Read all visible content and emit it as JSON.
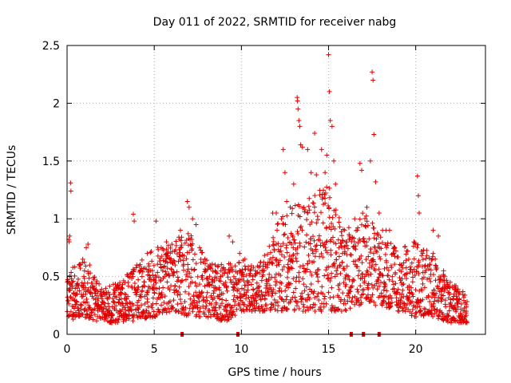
{
  "chart_data": {
    "type": "scatter",
    "title": "Day 011 of 2022, SRMTID for receiver nabg",
    "xlabel": "GPS time / hours",
    "ylabel": "SRMTID / TECUs",
    "xlim": [
      0,
      24
    ],
    "ylim": [
      0,
      2.5
    ],
    "xticks": [
      0,
      5,
      10,
      15,
      20
    ],
    "xtick_labels": [
      "0",
      "5",
      "10",
      "15",
      "20"
    ],
    "yticks": [
      0,
      0.5,
      1,
      1.5,
      2,
      2.5
    ],
    "ytick_labels": [
      "0",
      "0.5",
      "1",
      "1.5",
      "2",
      "2.5"
    ],
    "grid": true,
    "marker": "+",
    "series_color": "#e00000",
    "gap_markers_x": [
      6.6,
      9.8,
      16.3,
      17.0,
      17.9
    ],
    "series": [
      {
        "name": "SRMTID",
        "points": [
          [
            0.1,
            0.82
          ],
          [
            0.12,
            0.8
          ],
          [
            0.15,
            0.85
          ],
          [
            0.2,
            1.31
          ],
          [
            0.22,
            1.24
          ],
          [
            0.3,
            0.45
          ],
          [
            0.35,
            0.13
          ],
          [
            0.5,
            0.35
          ],
          [
            0.6,
            0.4
          ],
          [
            0.9,
            0.65
          ],
          [
            1.0,
            0.55
          ],
          [
            1.1,
            0.75
          ],
          [
            1.2,
            0.78
          ],
          [
            1.3,
            0.6
          ],
          [
            1.5,
            0.4
          ],
          [
            1.7,
            0.25
          ],
          [
            2.0,
            0.2
          ],
          [
            2.3,
            0.18
          ],
          [
            2.7,
            0.22
          ],
          [
            3.0,
            0.3
          ],
          [
            3.3,
            0.35
          ],
          [
            3.5,
            0.45
          ],
          [
            3.8,
            1.04
          ],
          [
            3.85,
            0.98
          ],
          [
            4.0,
            0.6
          ],
          [
            4.3,
            0.5
          ],
          [
            4.6,
            0.7
          ],
          [
            4.9,
            0.55
          ],
          [
            5.1,
            0.98
          ],
          [
            5.4,
            0.75
          ],
          [
            5.7,
            0.8
          ],
          [
            5.9,
            0.65
          ],
          [
            6.2,
            0.6
          ],
          [
            6.5,
            0.9
          ],
          [
            6.9,
            1.15
          ],
          [
            7.0,
            1.1
          ],
          [
            7.2,
            1.0
          ],
          [
            7.4,
            0.95
          ],
          [
            7.6,
            0.75
          ],
          [
            7.9,
            0.65
          ],
          [
            8.2,
            0.6
          ],
          [
            8.5,
            0.55
          ],
          [
            8.8,
            0.5
          ],
          [
            9.1,
            0.45
          ],
          [
            9.3,
            0.85
          ],
          [
            9.5,
            0.8
          ],
          [
            9.9,
            0.7
          ],
          [
            10.2,
            0.65
          ],
          [
            10.5,
            0.55
          ],
          [
            10.8,
            0.55
          ],
          [
            11.2,
            0.5
          ],
          [
            11.5,
            0.6
          ],
          [
            11.8,
            1.05
          ],
          [
            12.0,
            1.05
          ],
          [
            12.3,
            1.0
          ],
          [
            12.4,
            1.6
          ],
          [
            12.5,
            1.4
          ],
          [
            12.6,
            1.15
          ],
          [
            12.8,
            1.1
          ],
          [
            13.0,
            1.3
          ],
          [
            13.2,
            2.05
          ],
          [
            13.22,
            2.02
          ],
          [
            13.25,
            1.95
          ],
          [
            13.3,
            1.85
          ],
          [
            13.35,
            1.8
          ],
          [
            13.4,
            1.64
          ],
          [
            13.5,
            1.62
          ],
          [
            13.8,
            1.6
          ],
          [
            14.0,
            1.4
          ],
          [
            14.2,
            1.74
          ],
          [
            14.3,
            1.38
          ],
          [
            14.6,
            1.6
          ],
          [
            14.8,
            1.4
          ],
          [
            14.9,
            1.55
          ],
          [
            15.0,
            2.42
          ],
          [
            15.05,
            2.1
          ],
          [
            15.1,
            1.85
          ],
          [
            15.2,
            1.8
          ],
          [
            15.3,
            1.5
          ],
          [
            15.4,
            1.3
          ],
          [
            15.6,
            0.75
          ],
          [
            15.8,
            0.7
          ],
          [
            16.0,
            0.8
          ],
          [
            16.2,
            0.85
          ],
          [
            16.5,
            1.0
          ],
          [
            16.8,
            1.48
          ],
          [
            16.9,
            1.42
          ],
          [
            17.2,
            1.1
          ],
          [
            17.4,
            1.5
          ],
          [
            17.5,
            2.27
          ],
          [
            17.55,
            2.2
          ],
          [
            17.6,
            1.73
          ],
          [
            17.7,
            1.32
          ],
          [
            17.9,
            1.05
          ],
          [
            18.1,
            0.9
          ],
          [
            18.3,
            0.9
          ],
          [
            18.5,
            0.9
          ],
          [
            18.8,
            0.75
          ],
          [
            19.2,
            0.6
          ],
          [
            19.6,
            0.65
          ],
          [
            19.9,
            0.8
          ],
          [
            20.1,
            1.37
          ],
          [
            20.15,
            1.2
          ],
          [
            20.2,
            1.05
          ],
          [
            20.4,
            0.7
          ],
          [
            20.8,
            0.6
          ],
          [
            21.0,
            0.9
          ],
          [
            21.3,
            0.85
          ],
          [
            21.6,
            0.55
          ],
          [
            21.8,
            0.45
          ],
          [
            22.0,
            0.3
          ],
          [
            22.2,
            0.35
          ],
          [
            22.5,
            0.3
          ],
          [
            22.8,
            0.15
          ],
          [
            22.9,
            0.2
          ]
        ]
      }
    ],
    "envelope_note": "dense red '+' scatter; upper and lower bounds of the point cloud vs hour, in data units",
    "envelope": {
      "hours": [
        0,
        1,
        2,
        3,
        4,
        5,
        6,
        7,
        8,
        9,
        10,
        11,
        12,
        13,
        14,
        15,
        16,
        17,
        18,
        19,
        20,
        21,
        22,
        23
      ],
      "low": [
        0.15,
        0.15,
        0.1,
        0.1,
        0.12,
        0.15,
        0.2,
        0.15,
        0.15,
        0.1,
        0.2,
        0.2,
        0.2,
        0.2,
        0.2,
        0.2,
        0.2,
        0.25,
        0.25,
        0.2,
        0.15,
        0.15,
        0.1,
        0.1
      ],
      "high": [
        0.55,
        0.65,
        0.4,
        0.45,
        0.6,
        0.75,
        0.8,
        0.9,
        0.65,
        0.6,
        0.65,
        0.6,
        0.95,
        1.15,
        1.2,
        1.3,
        0.9,
        1.1,
        0.85,
        0.75,
        0.8,
        0.7,
        0.45,
        0.35
      ]
    }
  }
}
